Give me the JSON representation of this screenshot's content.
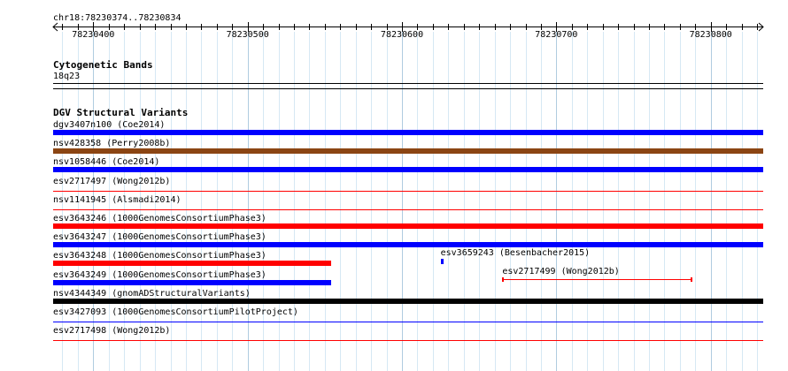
{
  "ruler": {
    "locus": "chr18:78230374..78230834",
    "start": 78230374,
    "end": 78230834,
    "ticks": [
      "78230400",
      "78230500",
      "78230600",
      "78230700",
      "78230800"
    ]
  },
  "tracks": {
    "cytogenetic": {
      "title": "Cytogenetic Bands",
      "band": "18q23"
    },
    "dgv": {
      "title": "DGV Structural Variants",
      "rows": [
        {
          "name": "dgv3407n100",
          "source": "(Coe2014)",
          "color": "#0000ff",
          "start": 78230374,
          "end": 78230834,
          "thin": false,
          "line": "#0000ff"
        },
        {
          "name": "nsv428358",
          "source": "(Perry2008b)",
          "color": "#8b4513",
          "start": 78230374,
          "end": 78230834,
          "thin": false,
          "line": "#8b4513"
        },
        {
          "name": "nsv1058446",
          "source": "(Coe2014)",
          "color": "#0000ff",
          "start": 78230374,
          "end": 78230834,
          "thin": false,
          "line": "#0000ff"
        },
        {
          "name": "esv2717497",
          "source": "(Wong2012b)",
          "color": "#ff0000",
          "start": 78230374,
          "end": 78230834,
          "thin": true,
          "line": "#ff0000"
        },
        {
          "name": "nsv1141945",
          "source": "(Alsmadi2014)",
          "color": "#ff0000",
          "start": 78230374,
          "end": 78230834,
          "thin": true,
          "line": "#ff0000"
        },
        {
          "name": "esv3643246",
          "source": "(1000GenomesConsortiumPhase3)",
          "color": "#ff0000",
          "start": 78230374,
          "end": 78230834,
          "thin": false,
          "line": "#ff0000"
        },
        {
          "name": "esv3643247",
          "source": "(1000GenomesConsortiumPhase3)",
          "color": "#0000ff",
          "start": 78230374,
          "end": 78230834,
          "thin": false,
          "line": "#0000ff"
        },
        {
          "name": "esv3643248",
          "source": "(1000GenomesConsortiumPhase3)",
          "color": "#ff0000",
          "start": 78230374,
          "end": 78230554,
          "thin": false,
          "line": ""
        },
        {
          "name": "esv3643249",
          "source": "(1000GenomesConsortiumPhase3)",
          "color": "#0000ff",
          "start": 78230374,
          "end": 78230554,
          "thin": false,
          "line": ""
        },
        {
          "name": "nsv4344349",
          "source": "(gnomADStructuralVariants)",
          "color": "#000000",
          "start": 78230374,
          "end": 78230834,
          "thin": false,
          "line": "#000000"
        },
        {
          "name": "esv3427093",
          "source": "(1000GenomesConsortiumPilotProject)",
          "color": "#0000ff",
          "start": 78230374,
          "end": 78230834,
          "thin": true,
          "line": "#0000ff"
        },
        {
          "name": "esv2717498",
          "source": "(Wong2012b)",
          "color": "#ff0000",
          "start": 78230374,
          "end": 78230834,
          "thin": true,
          "line": "#ff0000"
        }
      ],
      "extras": [
        {
          "name": "esv3659243",
          "source": "(Besenbacher2015)",
          "color": "#0000ff",
          "start": 78230625,
          "end": 78230627
        },
        {
          "name": "esv2717499",
          "source": "(Wong2012b)",
          "color": "#ff0000",
          "start": 78230665,
          "end": 78230788
        }
      ]
    }
  }
}
